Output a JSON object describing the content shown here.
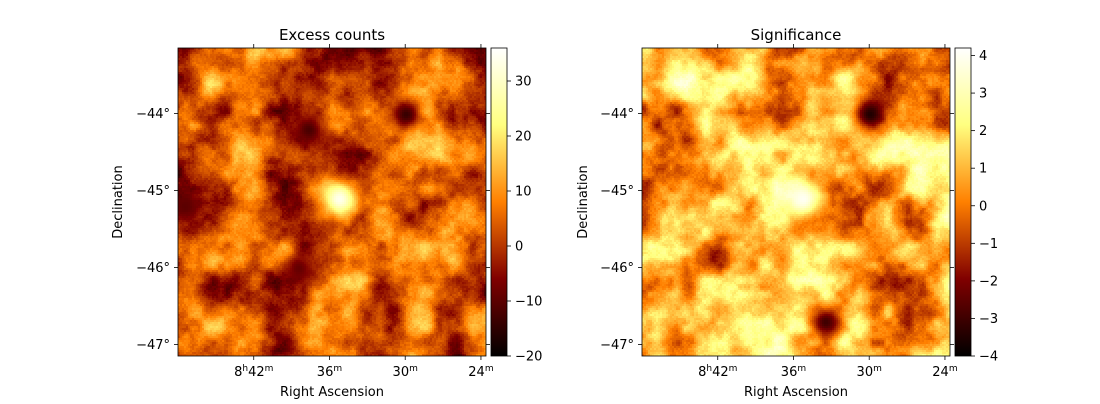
{
  "chart_data": [
    {
      "type": "heatmap",
      "title": "Excess counts",
      "xlabel": "Right Ascension",
      "ylabel": "Declination",
      "colormap": "afmhot",
      "xlim_ra_minutes": [
        48.0,
        23.6
      ],
      "ylim_dec_deg": [
        -47.15,
        -43.15
      ],
      "x_ticks": [
        {
          "ra_minutes": 42,
          "h": "8",
          "m": "42"
        },
        {
          "ra_minutes": 36,
          "h": "",
          "m": "36"
        },
        {
          "ra_minutes": 30,
          "h": "",
          "m": "30"
        },
        {
          "ra_minutes": 24,
          "h": "",
          "m": "24"
        }
      ],
      "y_ticks": [
        {
          "dec_deg": -44,
          "label": "−44°"
        },
        {
          "dec_deg": -45,
          "label": "−45°"
        },
        {
          "dec_deg": -46,
          "label": "−46°"
        },
        {
          "dec_deg": -47,
          "label": "−47°"
        }
      ],
      "colorbar": {
        "range": [
          -20,
          36
        ],
        "ticks": [
          {
            "value": 30,
            "label": "30"
          },
          {
            "value": 20,
            "label": "20"
          },
          {
            "value": 10,
            "label": "10"
          },
          {
            "value": 0,
            "label": "0"
          },
          {
            "value": -10,
            "label": "−10"
          },
          {
            "value": -20,
            "label": "−20"
          }
        ]
      },
      "features": [
        {
          "kind": "bright_source",
          "ra_minutes": 35.3,
          "dec_deg": -45.1,
          "value": 34
        },
        {
          "kind": "cold_spot",
          "ra_minutes": 30.0,
          "dec_deg": -44.0,
          "value": -14
        },
        {
          "kind": "cold_spot",
          "ra_minutes": 37.7,
          "dec_deg": -44.2,
          "value": -12
        },
        {
          "kind": "cold_spot",
          "ra_minutes": 47.5,
          "dec_deg": -45.2,
          "value": -10
        },
        {
          "kind": "cold_spot",
          "ra_minutes": 38.5,
          "dec_deg": -46.0,
          "value": -9
        }
      ]
    },
    {
      "type": "heatmap",
      "title": "Significance",
      "xlabel": "Right Ascension",
      "ylabel": "Declination",
      "colormap": "afmhot",
      "xlim_ra_minutes": [
        48.0,
        23.6
      ],
      "ylim_dec_deg": [
        -47.15,
        -43.15
      ],
      "x_ticks": [
        {
          "ra_minutes": 42,
          "h": "8",
          "m": "42"
        },
        {
          "ra_minutes": 36,
          "h": "",
          "m": "36"
        },
        {
          "ra_minutes": 30,
          "h": "",
          "m": "30"
        },
        {
          "ra_minutes": 24,
          "h": "",
          "m": "24"
        }
      ],
      "y_ticks": [
        {
          "dec_deg": -44,
          "label": "−44°"
        },
        {
          "dec_deg": -45,
          "label": "−45°"
        },
        {
          "dec_deg": -46,
          "label": "−46°"
        },
        {
          "dec_deg": -47,
          "label": "−47°"
        }
      ],
      "colorbar": {
        "range": [
          -4,
          4.2
        ],
        "ticks": [
          {
            "value": 4,
            "label": "4"
          },
          {
            "value": 3,
            "label": "3"
          },
          {
            "value": 2,
            "label": "2"
          },
          {
            "value": 1,
            "label": "1"
          },
          {
            "value": 0,
            "label": "0"
          },
          {
            "value": -1,
            "label": "−1"
          },
          {
            "value": -2,
            "label": "−2"
          },
          {
            "value": -3,
            "label": "−3"
          },
          {
            "value": -4,
            "label": "−4"
          }
        ]
      },
      "features": [
        {
          "kind": "bright_source",
          "ra_minutes": 35.3,
          "dec_deg": -45.1,
          "value": 4.0
        },
        {
          "kind": "cold_spot",
          "ra_minutes": 30.0,
          "dec_deg": -44.0,
          "value": -3.5
        },
        {
          "kind": "cold_spot",
          "ra_minutes": 33.5,
          "dec_deg": -46.7,
          "value": -3.0
        }
      ]
    }
  ]
}
